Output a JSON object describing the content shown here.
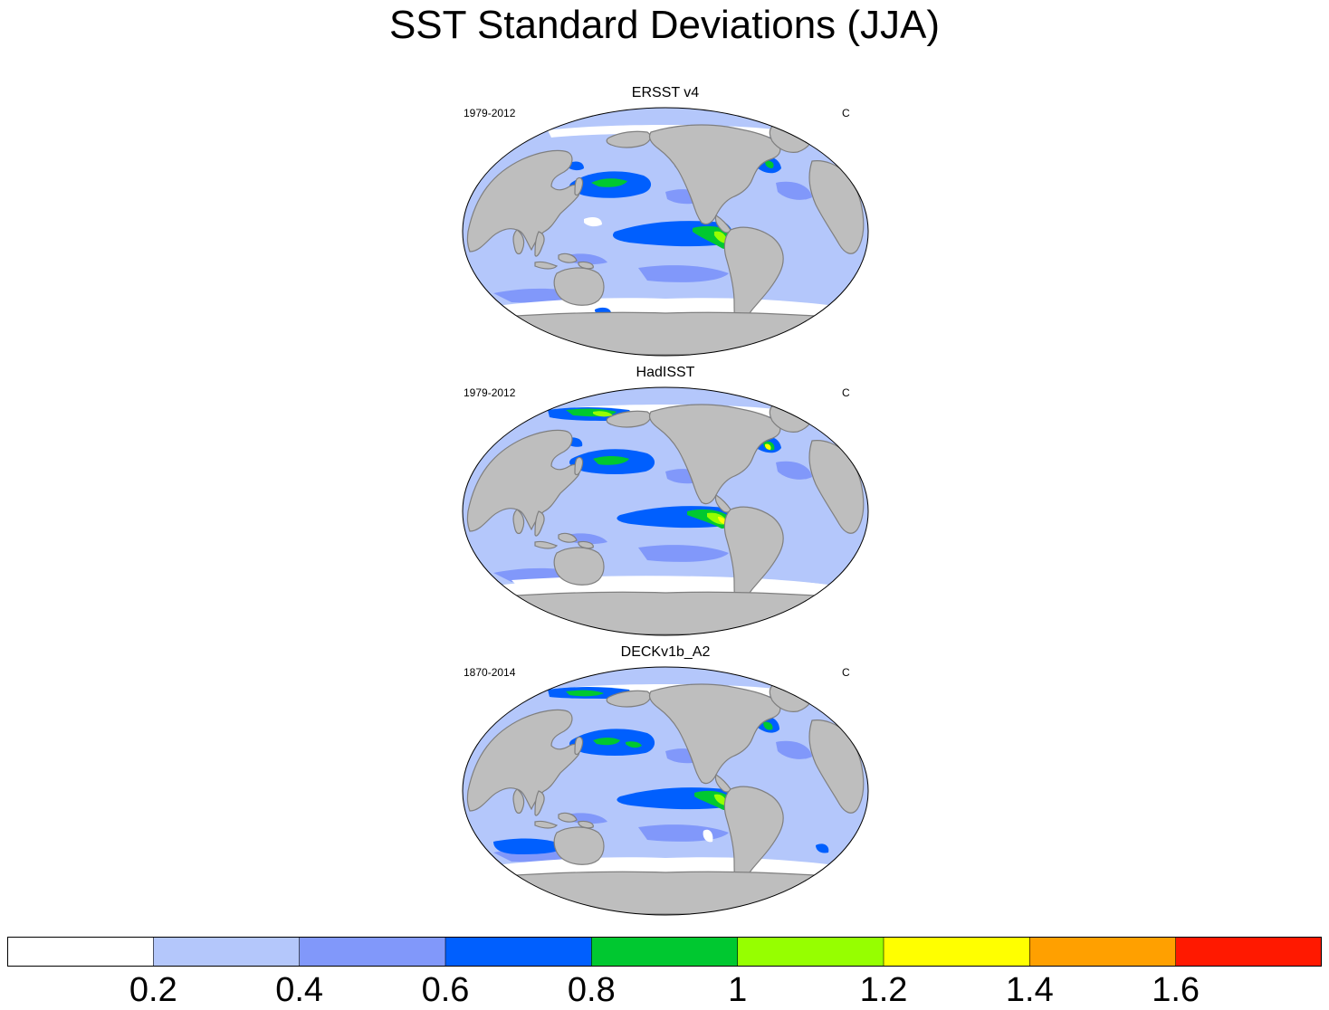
{
  "chart_data": {
    "type": "heatmap",
    "title": "SST Standard Deviations (JJA)",
    "colorbar": {
      "levels": [
        0.2,
        0.4,
        0.6,
        0.8,
        1,
        1.2,
        1.4,
        1.6
      ],
      "tick_labels": [
        "0.2",
        "0.4",
        "0.6",
        "0.8",
        "1",
        "1.2",
        "1.4",
        "1.6"
      ],
      "colors": [
        "#ffffff",
        "#b4c7fb",
        "#8198fa",
        "#005ffe",
        "#00c830",
        "#96ff00",
        "#ffff00",
        "#ffa000",
        "#ff1900"
      ]
    },
    "panels": [
      {
        "title": "ERSST v4",
        "period": "1979-2012",
        "units": "C"
      },
      {
        "title": "HadISST",
        "period": "1979-2012",
        "units": "C"
      },
      {
        "title": "DECKv1b_A2",
        "period": "1870-2014",
        "units": "C"
      }
    ]
  },
  "colors": {
    "land": "#bebebe",
    "coast": "#7f7f7f",
    "ice": "#ffffff"
  }
}
